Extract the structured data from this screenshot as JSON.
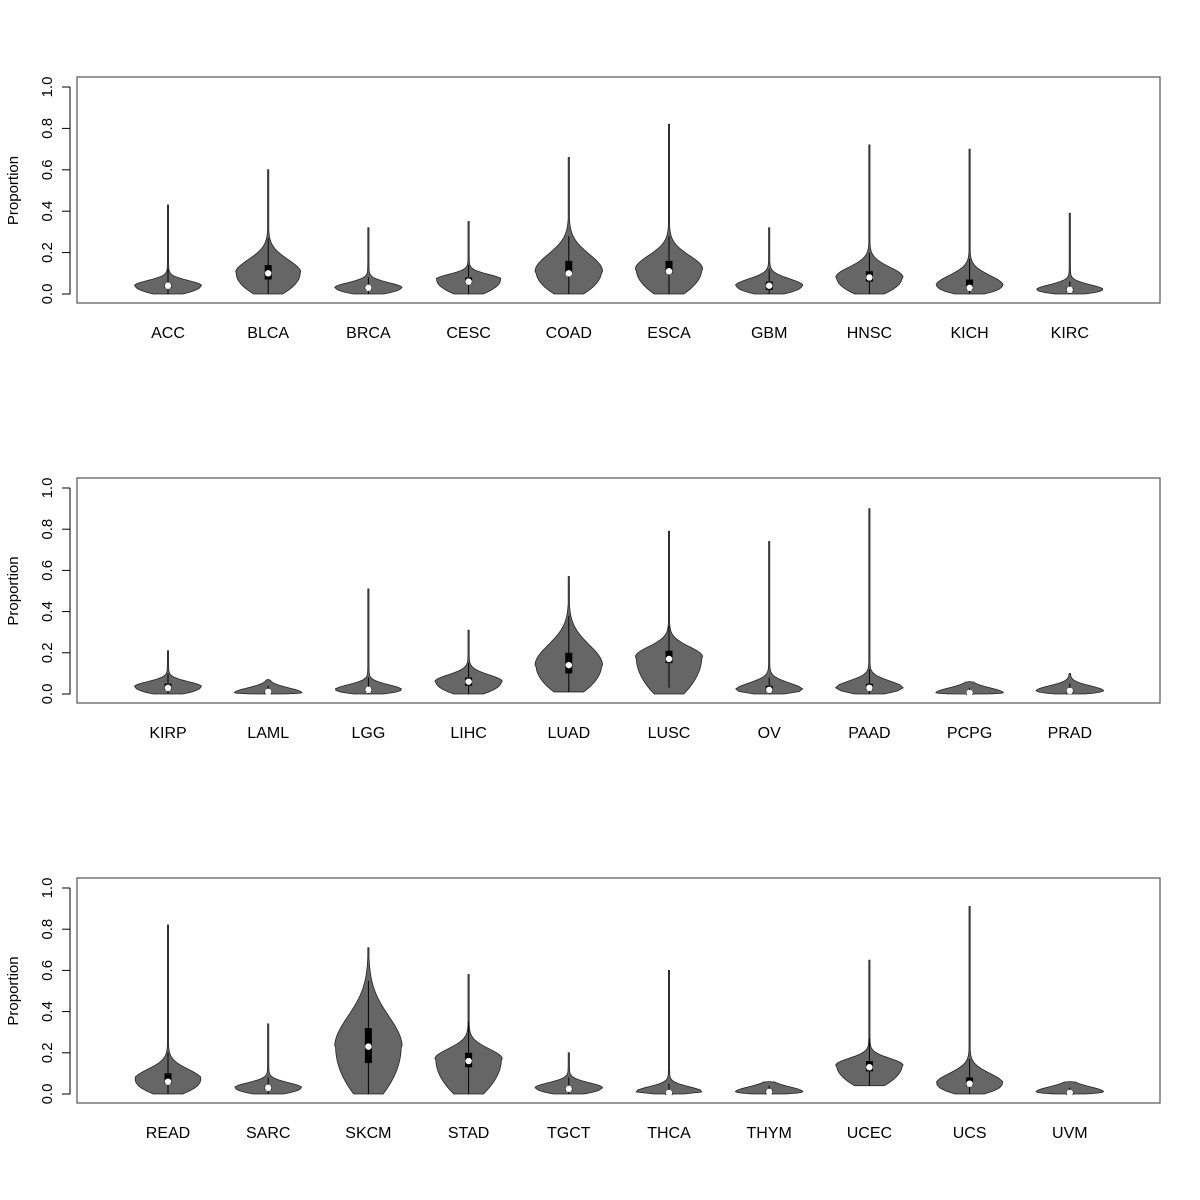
{
  "chart_data": [
    {
      "type": "violin",
      "ylabel": "Proportion",
      "ylim": [
        0,
        1.0
      ],
      "yticks": [
        "0.0",
        "0.2",
        "0.4",
        "0.6",
        "0.8",
        "1.0"
      ],
      "colors": {
        "violin": "#666666",
        "box": "#000000",
        "median": "#ffffff"
      },
      "categories": [
        "ACC",
        "BLCA",
        "BRCA",
        "CESC",
        "COAD",
        "ESCA",
        "GBM",
        "HNSC",
        "KICH",
        "KIRC"
      ],
      "series": [
        {
          "min": 0.0,
          "max": 0.43,
          "q1": 0.03,
          "median": 0.04,
          "q3": 0.05,
          "wlo": 0.0,
          "whi": 0.12,
          "mode": 0.04,
          "mw": 0.8
        },
        {
          "min": 0.0,
          "max": 0.6,
          "q1": 0.07,
          "median": 0.1,
          "q3": 0.14,
          "wlo": 0.0,
          "whi": 0.27,
          "mode": 0.1,
          "mw": 0.78
        },
        {
          "min": 0.0,
          "max": 0.32,
          "q1": 0.02,
          "median": 0.03,
          "q3": 0.04,
          "wlo": 0.0,
          "whi": 0.08,
          "mode": 0.03,
          "mw": 0.8
        },
        {
          "min": 0.0,
          "max": 0.35,
          "q1": 0.05,
          "median": 0.06,
          "q3": 0.08,
          "wlo": 0.0,
          "whi": 0.14,
          "mode": 0.07,
          "mw": 0.78
        },
        {
          "min": 0.0,
          "max": 0.66,
          "q1": 0.1,
          "median": 0.1,
          "q3": 0.16,
          "wlo": 0.0,
          "whi": 0.28,
          "mode": 0.11,
          "mw": 0.8
        },
        {
          "min": 0.0,
          "max": 0.82,
          "q1": 0.1,
          "median": 0.11,
          "q3": 0.16,
          "wlo": 0.0,
          "whi": 0.28,
          "mode": 0.12,
          "mw": 0.8
        },
        {
          "min": 0.0,
          "max": 0.32,
          "q1": 0.02,
          "median": 0.04,
          "q3": 0.06,
          "wlo": 0.0,
          "whi": 0.12,
          "mode": 0.04,
          "mw": 0.8
        },
        {
          "min": 0.0,
          "max": 0.72,
          "q1": 0.06,
          "median": 0.08,
          "q3": 0.11,
          "wlo": 0.0,
          "whi": 0.2,
          "mode": 0.08,
          "mw": 0.8
        },
        {
          "min": 0.0,
          "max": 0.7,
          "q1": 0.02,
          "median": 0.03,
          "q3": 0.07,
          "wlo": 0.0,
          "whi": 0.17,
          "mode": 0.04,
          "mw": 0.8
        },
        {
          "min": 0.0,
          "max": 0.39,
          "q1": 0.01,
          "median": 0.02,
          "q3": 0.03,
          "wlo": 0.0,
          "whi": 0.06,
          "mode": 0.02,
          "mw": 0.8
        }
      ]
    },
    {
      "type": "violin",
      "ylabel": "Proportion",
      "ylim": [
        0,
        1.0
      ],
      "yticks": [
        "0.0",
        "0.2",
        "0.4",
        "0.6",
        "0.8",
        "1.0"
      ],
      "colors": {
        "violin": "#666666",
        "box": "#000000",
        "median": "#ffffff"
      },
      "categories": [
        "KIRP",
        "LAML",
        "LGG",
        "LIHC",
        "LUAD",
        "LUSC",
        "OV",
        "PAAD",
        "PCPG",
        "PRAD"
      ],
      "series": [
        {
          "min": 0.0,
          "max": 0.21,
          "q1": 0.02,
          "median": 0.03,
          "q3": 0.05,
          "wlo": 0.0,
          "whi": 0.1,
          "mode": 0.035,
          "mw": 0.8
        },
        {
          "min": 0.0,
          "max": 0.07,
          "q1": 0.0,
          "median": 0.01,
          "q3": 0.015,
          "wlo": 0.0,
          "whi": 0.04,
          "mode": 0.005,
          "mw": 0.8
        },
        {
          "min": 0.0,
          "max": 0.51,
          "q1": 0.01,
          "median": 0.02,
          "q3": 0.03,
          "wlo": 0.0,
          "whi": 0.08,
          "mode": 0.02,
          "mw": 0.8
        },
        {
          "min": 0.0,
          "max": 0.31,
          "q1": 0.04,
          "median": 0.06,
          "q3": 0.08,
          "wlo": 0.0,
          "whi": 0.15,
          "mode": 0.06,
          "mw": 0.8
        },
        {
          "min": 0.01,
          "max": 0.57,
          "q1": 0.1,
          "median": 0.14,
          "q3": 0.2,
          "wlo": 0.01,
          "whi": 0.38,
          "mode": 0.14,
          "mw": 0.8
        },
        {
          "min": 0.0,
          "max": 0.79,
          "q1": 0.15,
          "median": 0.17,
          "q3": 0.21,
          "wlo": 0.03,
          "whi": 0.33,
          "mode": 0.18,
          "mw": 0.8
        },
        {
          "min": 0.0,
          "max": 0.74,
          "q1": 0.01,
          "median": 0.02,
          "q3": 0.04,
          "wlo": 0.0,
          "whi": 0.08,
          "mode": 0.02,
          "mw": 0.8
        },
        {
          "min": 0.0,
          "max": 0.9,
          "q1": 0.02,
          "median": 0.03,
          "q3": 0.05,
          "wlo": 0.0,
          "whi": 0.12,
          "mode": 0.03,
          "mw": 0.8
        },
        {
          "min": 0.0,
          "max": 0.06,
          "q1": 0.0,
          "median": 0.005,
          "q3": 0.01,
          "wlo": 0.0,
          "whi": 0.03,
          "mode": 0.005,
          "mw": 0.8
        },
        {
          "min": 0.0,
          "max": 0.1,
          "q1": 0.01,
          "median": 0.015,
          "q3": 0.02,
          "wlo": 0.0,
          "whi": 0.05,
          "mode": 0.015,
          "mw": 0.8
        }
      ]
    },
    {
      "type": "violin",
      "ylabel": "Proportion",
      "ylim": [
        0,
        1.0
      ],
      "yticks": [
        "0.0",
        "0.2",
        "0.4",
        "0.6",
        "0.8",
        "1.0"
      ],
      "colors": {
        "violin": "#666666",
        "box": "#000000",
        "median": "#ffffff"
      },
      "categories": [
        "READ",
        "SARC",
        "SKCM",
        "STAD",
        "TGCT",
        "THCA",
        "THYM",
        "UCEC",
        "UCS",
        "UVM"
      ],
      "series": [
        {
          "min": 0.0,
          "max": 0.82,
          "q1": 0.05,
          "median": 0.06,
          "q3": 0.1,
          "wlo": 0.0,
          "whi": 0.2,
          "mode": 0.07,
          "mw": 0.8
        },
        {
          "min": 0.0,
          "max": 0.34,
          "q1": 0.02,
          "median": 0.03,
          "q3": 0.04,
          "wlo": 0.0,
          "whi": 0.08,
          "mode": 0.03,
          "mw": 0.8
        },
        {
          "min": 0.0,
          "max": 0.71,
          "q1": 0.15,
          "median": 0.23,
          "q3": 0.32,
          "wlo": 0.0,
          "whi": 0.55,
          "mode": 0.23,
          "mw": 0.8
        },
        {
          "min": 0.0,
          "max": 0.58,
          "q1": 0.13,
          "median": 0.16,
          "q3": 0.2,
          "wlo": 0.0,
          "whi": 0.35,
          "mode": 0.17,
          "mw": 0.8
        },
        {
          "min": 0.0,
          "max": 0.2,
          "q1": 0.015,
          "median": 0.025,
          "q3": 0.035,
          "wlo": 0.0,
          "whi": 0.08,
          "mode": 0.03,
          "mw": 0.8
        },
        {
          "min": 0.0,
          "max": 0.6,
          "q1": 0.0,
          "median": 0.005,
          "q3": 0.01,
          "wlo": 0.0,
          "whi": 0.05,
          "mode": 0.01,
          "mw": 0.8
        },
        {
          "min": 0.0,
          "max": 0.06,
          "q1": 0.0,
          "median": 0.01,
          "q3": 0.02,
          "wlo": 0.0,
          "whi": 0.04,
          "mode": 0.01,
          "mw": 0.8
        },
        {
          "min": 0.04,
          "max": 0.65,
          "q1": 0.11,
          "median": 0.13,
          "q3": 0.16,
          "wlo": 0.04,
          "whi": 0.27,
          "mode": 0.14,
          "mw": 0.8
        },
        {
          "min": 0.0,
          "max": 0.91,
          "q1": 0.04,
          "median": 0.05,
          "q3": 0.08,
          "wlo": 0.0,
          "whi": 0.17,
          "mode": 0.05,
          "mw": 0.8
        },
        {
          "min": 0.0,
          "max": 0.06,
          "q1": 0.0,
          "median": 0.005,
          "q3": 0.01,
          "wlo": 0.0,
          "whi": 0.03,
          "mode": 0.01,
          "mw": 0.8
        }
      ]
    }
  ]
}
